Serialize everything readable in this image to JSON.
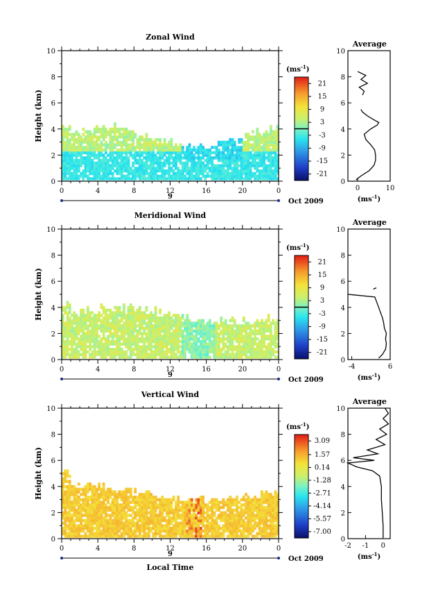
{
  "chart_data": [
    {
      "type": "heatmap",
      "title": "Zonal Wind",
      "ylabel": "Height (km)",
      "ylim": [
        0,
        10
      ],
      "yticks": [
        "0",
        "2",
        "4",
        "6",
        "8",
        "10"
      ],
      "xlim": [
        0,
        24
      ],
      "xticks": [
        "0",
        "4",
        "8",
        "12",
        "16",
        "20",
        "0"
      ],
      "date_marker": "9",
      "date_label": "Oct 2009",
      "colorbar": {
        "unit_label": "(ms",
        "unit_sup": "-1",
        "unit_close": ")",
        "ticks": [
          "21",
          "15",
          "9",
          "3",
          "-3",
          "-9",
          "-15",
          "-21"
        ],
        "range": [
          -24,
          24
        ],
        "zero_line": 0
      },
      "profile": {
        "title": "Average",
        "xticks": [
          "0",
          "10"
        ],
        "xlim": [
          -3,
          10
        ],
        "xlabel": "(ms",
        "xlabel_sup": "-1",
        "xlabel_close": ")",
        "heights": [
          0.1,
          0.4,
          0.8,
          1.2,
          1.6,
          2.0,
          2.4,
          2.8,
          3.2,
          3.6,
          4.0,
          4.3,
          4.5,
          4.7,
          5.0,
          5.3,
          5.5
        ],
        "values": [
          -0.5,
          1.0,
          3.5,
          5.0,
          5.5,
          5.5,
          5.2,
          4.0,
          2.5,
          2.0,
          4.0,
          6.0,
          6.5,
          5.0,
          3.0,
          1.5,
          1.0
        ],
        "upper_heights": [
          6.6,
          6.9,
          7.2,
          7.5,
          7.8,
          8.1,
          8.4
        ],
        "upper_values": [
          1.5,
          2.0,
          0.5,
          3.0,
          1.0,
          2.5,
          0.0
        ]
      }
    },
    {
      "type": "heatmap",
      "title": "Meridional Wind",
      "ylabel": "Height (km)",
      "ylim": [
        0,
        10
      ],
      "yticks": [
        "0",
        "2",
        "4",
        "6",
        "8",
        "10"
      ],
      "xlim": [
        0,
        24
      ],
      "xticks": [
        "0",
        "4",
        "8",
        "12",
        "16",
        "20",
        "0"
      ],
      "date_marker": "9",
      "date_label": "Oct 2009",
      "colorbar": {
        "unit_label": "(ms",
        "unit_sup": "-1",
        "unit_close": ")",
        "ticks": [
          "21",
          "15",
          "9",
          "3",
          "-3",
          "-9",
          "-15",
          "-21"
        ],
        "range": [
          -24,
          24
        ],
        "zero_line": 0
      },
      "profile": {
        "title": "Average",
        "xticks": [
          "-4",
          "6"
        ],
        "xlim": [
          -5,
          6
        ],
        "xlabel": "(ms",
        "xlabel_sup": "-1",
        "xlabel_close": ")",
        "heights": [
          0.1,
          0.4,
          0.8,
          1.2,
          1.6,
          2.0,
          2.4,
          2.8,
          3.2,
          3.6,
          4.0,
          4.4,
          4.8,
          5.0
        ],
        "values": [
          3.0,
          4.0,
          4.8,
          5.0,
          4.8,
          5.0,
          4.5,
          4.3,
          4.0,
          3.5,
          3.0,
          2.5,
          2.0,
          -5.0
        ],
        "upper_heights": [
          5.4,
          5.5
        ],
        "upper_values": [
          1.6,
          2.4
        ]
      }
    },
    {
      "type": "heatmap",
      "title": "Vertical Wind",
      "ylabel": "Height (km)",
      "ylim": [
        0,
        10
      ],
      "yticks": [
        "0",
        "2",
        "4",
        "6",
        "8",
        "10"
      ],
      "xlim": [
        0,
        24
      ],
      "xticks": [
        "0",
        "4",
        "8",
        "12",
        "16",
        "20",
        "0"
      ],
      "xlabel": "Local Time",
      "date_marker": "9",
      "date_label": "Oct 2009",
      "colorbar": {
        "unit_label": "(ms",
        "unit_sup": "-1",
        "unit_close": ")",
        "ticks": [
          "3.09",
          "1.57",
          "0.14",
          "-1.28",
          "-2.71",
          "-4.14",
          "-5.57",
          "-7.00"
        ],
        "range": [
          -7.7,
          3.8
        ]
      },
      "profile": {
        "title": "Average",
        "xticks": [
          "-2",
          "-1",
          "0"
        ],
        "xlim": [
          -2,
          0.4
        ],
        "xlabel": "(ms",
        "xlabel_sup": "-1",
        "xlabel_close": ")",
        "heights": [
          0.1,
          1.0,
          2.0,
          3.0,
          4.0,
          4.8,
          5.2,
          5.5,
          5.8,
          6.0,
          6.2,
          6.5,
          6.8,
          7.2,
          7.6,
          8.0,
          8.4,
          8.8,
          9.2,
          9.6,
          10.0
        ],
        "values": [
          0.0,
          0.0,
          -0.05,
          -0.1,
          -0.1,
          -0.2,
          -0.6,
          -1.5,
          -2.0,
          -0.5,
          -1.7,
          -0.3,
          -0.9,
          0.1,
          -0.4,
          0.2,
          -0.2,
          0.3,
          0.0,
          0.3,
          0.1
        ]
      }
    }
  ]
}
